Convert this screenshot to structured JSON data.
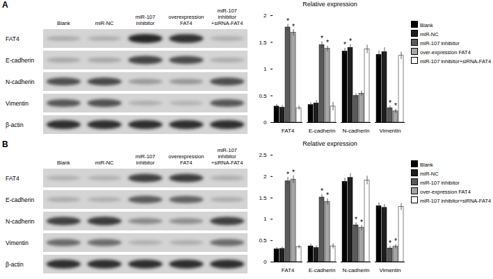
{
  "chart_data": [
    {
      "type": "bar",
      "title": "Relative expression",
      "categories": [
        "FAT4",
        "E-cadherin",
        "N-cadherin",
        "Vimentin"
      ],
      "ylim": [
        0,
        2
      ],
      "yticks": [
        0,
        0.5,
        1,
        1.5,
        2
      ],
      "legend": "right",
      "series": [
        {
          "name": "Blank",
          "color": "#000000",
          "values": [
            0.3,
            0.33,
            1.33,
            1.27
          ],
          "errors": [
            0.04,
            0.04,
            0.06,
            0.07
          ],
          "significance": [
            null,
            null,
            "*",
            null
          ]
        },
        {
          "name": "miR-NC",
          "color": "#1e1e1e",
          "values": [
            0.28,
            0.36,
            1.4,
            1.32
          ],
          "errors": [
            0.04,
            0.05,
            0.06,
            0.08
          ],
          "significance": [
            null,
            null,
            "*",
            null
          ]
        },
        {
          "name": "miR-107 inhibitor",
          "color": "#5a5a5a",
          "values": [
            1.78,
            1.45,
            0.5,
            0.27
          ],
          "errors": [
            0.06,
            0.06,
            0.04,
            0.04
          ],
          "significance": [
            "*",
            "*",
            null,
            "*"
          ]
        },
        {
          "name": "over-expression FAT4",
          "color": "#a6a6a6",
          "values": [
            1.68,
            1.38,
            0.54,
            0.21
          ],
          "errors": [
            0.06,
            0.05,
            0.05,
            0.04
          ],
          "significance": [
            "*",
            "*",
            null,
            "*"
          ]
        },
        {
          "name": "miR-107 inhibitor+siRNA-FAT4",
          "color": "#ffffff",
          "values": [
            0.27,
            0.3,
            1.37,
            1.25
          ],
          "errors": [
            0.04,
            0.08,
            0.08,
            0.07
          ],
          "significance": [
            null,
            null,
            null,
            null
          ]
        }
      ]
    },
    {
      "type": "bar",
      "title": "Relative expression",
      "categories": [
        "FAT4",
        "E-cadherin",
        "N-cadherin",
        "Vimentin"
      ],
      "ylim": [
        0,
        2.5
      ],
      "yticks": [
        0,
        0.5,
        1,
        1.5,
        2,
        2.5
      ],
      "legend": "right",
      "series": [
        {
          "name": "Blank",
          "color": "#000000",
          "values": [
            0.3,
            0.37,
            1.88,
            1.31
          ],
          "errors": [
            0.04,
            0.05,
            0.08,
            0.08
          ],
          "significance": [
            null,
            null,
            null,
            null
          ]
        },
        {
          "name": "miR-NC",
          "color": "#1e1e1e",
          "values": [
            0.31,
            0.33,
            1.97,
            1.27
          ],
          "errors": [
            0.04,
            0.05,
            0.1,
            0.08
          ],
          "significance": [
            null,
            null,
            null,
            null
          ]
        },
        {
          "name": "miR-107 inhibitor",
          "color": "#5a5a5a",
          "values": [
            1.89,
            1.51,
            0.86,
            0.32
          ],
          "errors": [
            0.09,
            0.07,
            0.06,
            0.05
          ],
          "significance": [
            "*",
            "*",
            "*",
            "*"
          ]
        },
        {
          "name": "over-expression FAT4",
          "color": "#a6a6a6",
          "values": [
            1.93,
            1.41,
            0.8,
            0.36
          ],
          "errors": [
            0.09,
            0.07,
            0.06,
            0.05
          ],
          "significance": [
            "*",
            "*",
            "*",
            "*"
          ]
        },
        {
          "name": "miR-107 inhibitor+siRNA-FAT4",
          "color": "#ffffff",
          "values": [
            0.35,
            0.37,
            1.91,
            1.29
          ],
          "errors": [
            0.04,
            0.06,
            0.1,
            0.08
          ],
          "significance": [
            null,
            null,
            null,
            null
          ]
        }
      ]
    }
  ],
  "blots": [
    {
      "panel": "A",
      "lanes": [
        "Blank",
        "miR-NC",
        "miR-107 inhibitor",
        "overexpression FAT4",
        "miR-107 inhibitor +siRNA-FAT4"
      ],
      "rows": [
        "FAT4",
        "E-cadherin",
        "N-cadherin",
        "Vimentin",
        "β-actin"
      ]
    },
    {
      "panel": "B",
      "lanes": [
        "Blank",
        "miR-NC",
        "miR-107 inhibitor",
        "overexpression FAT4",
        "miR-107 inhibitor +siRNA-FAT4"
      ],
      "rows": [
        "FAT4",
        "E-cadherin",
        "N-cadherin",
        "Vimentin",
        "β-actin"
      ]
    }
  ]
}
